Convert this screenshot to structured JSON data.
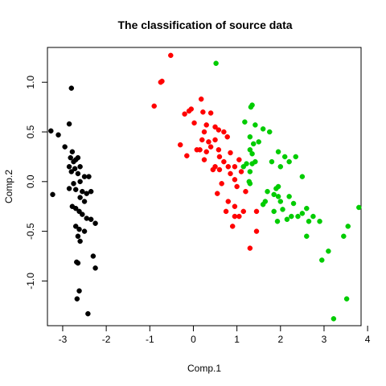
{
  "chart_data": {
    "type": "scatter",
    "title": "The classification of source data",
    "xlabel": "Comp.1",
    "ylabel": "Comp.2",
    "xlim": [
      -3.35,
      3.85
    ],
    "ylim": [
      -1.45,
      1.35
    ],
    "x_ticks": [
      -3,
      -2,
      -1,
      0,
      1,
      2,
      3,
      4
    ],
    "y_ticks": [
      -1.0,
      -0.5,
      0.0,
      0.5,
      1.0
    ],
    "x_tick_labels": [
      "-3",
      "-2",
      "-1",
      "0",
      "1",
      "2",
      "3",
      "4"
    ],
    "y_tick_labels": [
      "-1.0",
      "-0.5",
      "0.0",
      "0.5",
      "1.0"
    ],
    "grid": false,
    "series": [
      {
        "color": "#000000",
        "points": [
          [
            -2.8,
            0.94
          ],
          [
            -3.27,
            0.51
          ],
          [
            -3.1,
            0.47
          ],
          [
            -2.85,
            0.58
          ],
          [
            -2.95,
            0.35
          ],
          [
            -2.78,
            0.3
          ],
          [
            -2.82,
            0.24
          ],
          [
            -2.75,
            0.2
          ],
          [
            -2.7,
            0.22
          ],
          [
            -2.65,
            0.24
          ],
          [
            -2.85,
            0.15
          ],
          [
            -2.72,
            0.13
          ],
          [
            -2.6,
            0.15
          ],
          [
            -2.8,
            0.1
          ],
          [
            -2.65,
            0.08
          ],
          [
            -2.5,
            0.05
          ],
          [
            -2.4,
            0.05
          ],
          [
            -2.6,
            0.0
          ],
          [
            -2.75,
            -0.02
          ],
          [
            -3.23,
            -0.13
          ],
          [
            -2.85,
            -0.07
          ],
          [
            -2.7,
            -0.08
          ],
          [
            -2.55,
            -0.1
          ],
          [
            -2.45,
            -0.12
          ],
          [
            -2.35,
            -0.1
          ],
          [
            -2.6,
            -0.16
          ],
          [
            -2.5,
            -0.2
          ],
          [
            -2.78,
            -0.25
          ],
          [
            -2.7,
            -0.27
          ],
          [
            -2.62,
            -0.3
          ],
          [
            -2.55,
            -0.33
          ],
          [
            -2.45,
            -0.37
          ],
          [
            -2.35,
            -0.38
          ],
          [
            -2.25,
            -0.42
          ],
          [
            -2.7,
            -0.45
          ],
          [
            -2.62,
            -0.48
          ],
          [
            -2.5,
            -0.5
          ],
          [
            -2.65,
            -0.55
          ],
          [
            -2.6,
            -0.6
          ],
          [
            -2.3,
            -0.75
          ],
          [
            -2.68,
            -0.81
          ],
          [
            -2.65,
            -0.82
          ],
          [
            -2.25,
            -0.87
          ],
          [
            -2.62,
            -1.1
          ],
          [
            -2.67,
            -1.18
          ],
          [
            -2.42,
            -1.33
          ]
        ]
      },
      {
        "color": "#ff0000",
        "points": [
          [
            -0.52,
            1.27
          ],
          [
            -0.72,
            1.01
          ],
          [
            -0.75,
            1.0
          ],
          [
            -0.9,
            0.76
          ],
          [
            0.18,
            0.83
          ],
          [
            -0.05,
            0.73
          ],
          [
            -0.1,
            0.71
          ],
          [
            -0.2,
            0.68
          ],
          [
            0.22,
            0.7
          ],
          [
            0.4,
            0.69
          ],
          [
            0.02,
            0.59
          ],
          [
            0.3,
            0.57
          ],
          [
            0.5,
            0.55
          ],
          [
            0.58,
            0.52
          ],
          [
            0.25,
            0.5
          ],
          [
            0.7,
            0.5
          ],
          [
            0.78,
            0.45
          ],
          [
            0.2,
            0.42
          ],
          [
            0.5,
            0.42
          ],
          [
            0.35,
            0.4
          ],
          [
            -0.3,
            0.37
          ],
          [
            0.4,
            0.35
          ],
          [
            0.15,
            0.32
          ],
          [
            0.08,
            0.32
          ],
          [
            0.58,
            0.32
          ],
          [
            0.3,
            0.3
          ],
          [
            0.85,
            0.29
          ],
          [
            -0.15,
            0.26
          ],
          [
            0.6,
            0.25
          ],
          [
            0.25,
            0.22
          ],
          [
            1.05,
            0.22
          ],
          [
            0.7,
            0.2
          ],
          [
            0.5,
            0.15
          ],
          [
            0.8,
            0.15
          ],
          [
            0.95,
            0.15
          ],
          [
            0.45,
            0.12
          ],
          [
            0.6,
            0.12
          ],
          [
            1.1,
            0.1
          ],
          [
            0.85,
            0.08
          ],
          [
            0.95,
            0.02
          ],
          [
            0.65,
            -0.02
          ],
          [
            1.0,
            -0.05
          ],
          [
            0.55,
            -0.12
          ],
          [
            1.2,
            -0.1
          ],
          [
            0.8,
            -0.2
          ],
          [
            0.95,
            -0.25
          ],
          [
            0.75,
            -0.3
          ],
          [
            1.15,
            -0.3
          ],
          [
            1.45,
            -0.3
          ],
          [
            0.95,
            -0.35
          ],
          [
            1.05,
            -0.35
          ],
          [
            0.9,
            -0.45
          ],
          [
            1.45,
            -0.5
          ],
          [
            1.3,
            -0.67
          ]
        ]
      },
      {
        "color": "#00cc00",
        "points": [
          [
            0.52,
            1.19
          ],
          [
            1.35,
            0.77
          ],
          [
            1.32,
            0.75
          ],
          [
            1.18,
            0.6
          ],
          [
            1.42,
            0.57
          ],
          [
            1.6,
            0.53
          ],
          [
            1.75,
            0.5
          ],
          [
            1.3,
            0.45
          ],
          [
            1.5,
            0.4
          ],
          [
            1.38,
            0.38
          ],
          [
            1.3,
            0.32
          ],
          [
            1.35,
            0.28
          ],
          [
            1.42,
            0.2
          ],
          [
            1.95,
            0.3
          ],
          [
            2.1,
            0.25
          ],
          [
            2.35,
            0.25
          ],
          [
            1.8,
            0.2
          ],
          [
            2.2,
            0.2
          ],
          [
            1.22,
            0.18
          ],
          [
            1.35,
            0.18
          ],
          [
            1.15,
            0.15
          ],
          [
            2.0,
            0.15
          ],
          [
            2.5,
            0.05
          ],
          [
            1.28,
            0.0
          ],
          [
            1.3,
            0.1
          ],
          [
            1.3,
            -0.02
          ],
          [
            1.95,
            -0.05
          ],
          [
            1.9,
            -0.07
          ],
          [
            1.7,
            -0.1
          ],
          [
            1.85,
            -0.13
          ],
          [
            1.95,
            -0.15
          ],
          [
            2.2,
            -0.15
          ],
          [
            2.0,
            -0.2
          ],
          [
            1.65,
            -0.2
          ],
          [
            1.6,
            -0.23
          ],
          [
            2.3,
            -0.22
          ],
          [
            2.05,
            -0.28
          ],
          [
            2.6,
            -0.27
          ],
          [
            1.85,
            -0.3
          ],
          [
            2.5,
            -0.32
          ],
          [
            2.4,
            -0.35
          ],
          [
            2.25,
            -0.35
          ],
          [
            2.75,
            -0.35
          ],
          [
            2.15,
            -0.38
          ],
          [
            2.65,
            -0.4
          ],
          [
            1.93,
            -0.4
          ],
          [
            2.9,
            -0.4
          ],
          [
            3.8,
            -0.26
          ],
          [
            3.55,
            -0.45
          ],
          [
            2.6,
            -0.55
          ],
          [
            3.45,
            -0.55
          ],
          [
            3.1,
            -0.7
          ],
          [
            2.95,
            -0.79
          ],
          [
            3.52,
            -1.18
          ],
          [
            3.22,
            -1.38
          ]
        ]
      }
    ]
  }
}
